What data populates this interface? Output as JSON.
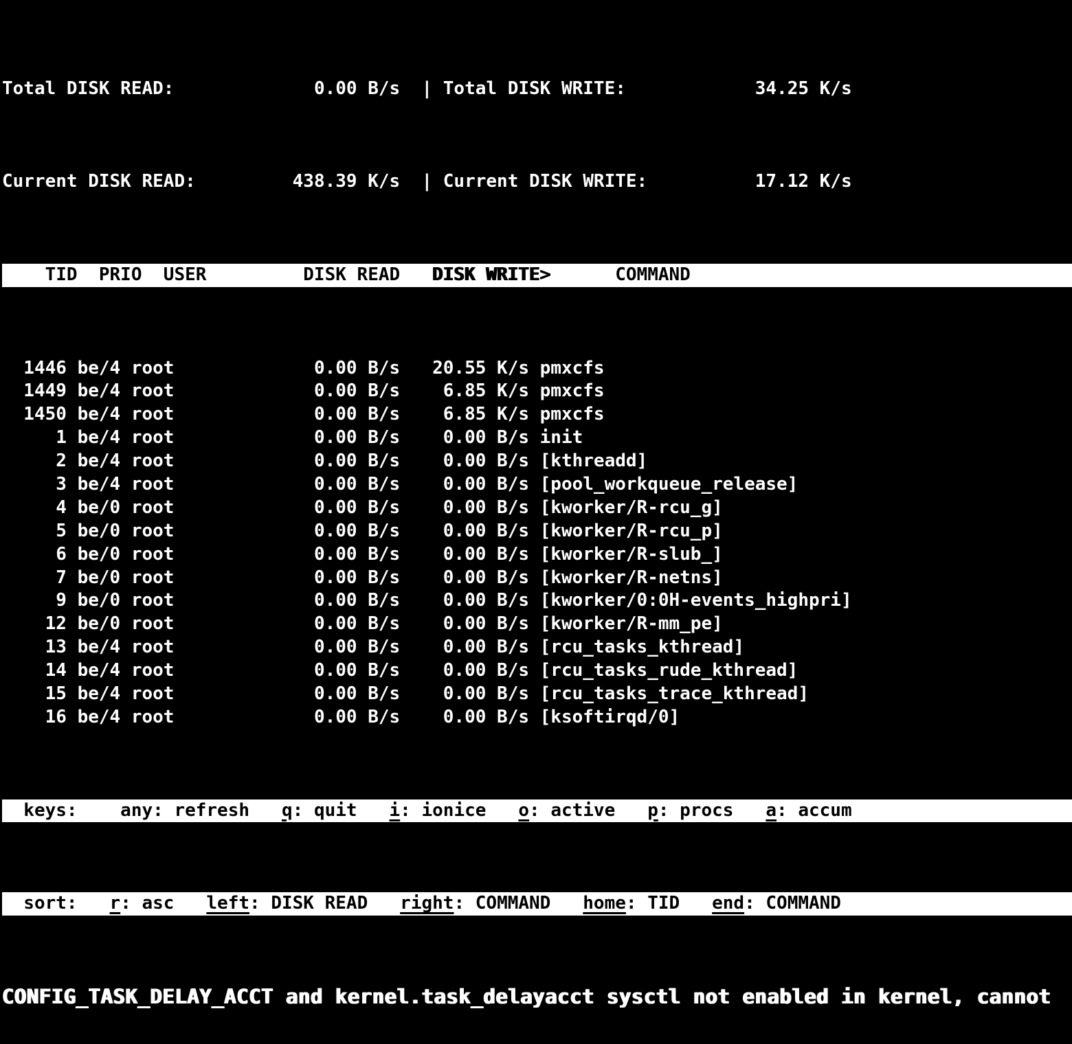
{
  "app": {
    "name": "iotop"
  },
  "colors": {
    "background": "#000000",
    "foreground": "#ffffff",
    "inverse_background": "#ffffff",
    "inverse_foreground": "#000000"
  },
  "summary": {
    "total_read_label": "Total DISK READ:",
    "total_read_value": "0.00 B/s",
    "separator": "|",
    "total_write_label": "Total DISK WRITE:",
    "total_write_value": "34.25 K/s",
    "current_read_label": "Current DISK READ:",
    "current_read_value": "438.39 K/s",
    "current_write_label": "Current DISK WRITE:",
    "current_write_value": "17.12 K/s"
  },
  "table": {
    "headers": {
      "tid": "TID",
      "prio": "PRIO",
      "user": "USER",
      "disk_read": "DISK READ",
      "disk_write": "DISK WRITE",
      "command": "COMMAND"
    },
    "sort_column": "DISK WRITE",
    "sort_indicator": ">",
    "rows": [
      {
        "tid": "1446",
        "prio": "be/4",
        "user": "root",
        "disk_read": "0.00 B/s",
        "disk_write": "20.55 K/s",
        "command": "pmxcfs"
      },
      {
        "tid": "1449",
        "prio": "be/4",
        "user": "root",
        "disk_read": "0.00 B/s",
        "disk_write": "6.85 K/s",
        "command": "pmxcfs"
      },
      {
        "tid": "1450",
        "prio": "be/4",
        "user": "root",
        "disk_read": "0.00 B/s",
        "disk_write": "6.85 K/s",
        "command": "pmxcfs"
      },
      {
        "tid": "1",
        "prio": "be/4",
        "user": "root",
        "disk_read": "0.00 B/s",
        "disk_write": "0.00 B/s",
        "command": "init"
      },
      {
        "tid": "2",
        "prio": "be/4",
        "user": "root",
        "disk_read": "0.00 B/s",
        "disk_write": "0.00 B/s",
        "command": "[kthreadd]"
      },
      {
        "tid": "3",
        "prio": "be/4",
        "user": "root",
        "disk_read": "0.00 B/s",
        "disk_write": "0.00 B/s",
        "command": "[pool_workqueue_release]"
      },
      {
        "tid": "4",
        "prio": "be/0",
        "user": "root",
        "disk_read": "0.00 B/s",
        "disk_write": "0.00 B/s",
        "command": "[kworker/R-rcu_g]"
      },
      {
        "tid": "5",
        "prio": "be/0",
        "user": "root",
        "disk_read": "0.00 B/s",
        "disk_write": "0.00 B/s",
        "command": "[kworker/R-rcu_p]"
      },
      {
        "tid": "6",
        "prio": "be/0",
        "user": "root",
        "disk_read": "0.00 B/s",
        "disk_write": "0.00 B/s",
        "command": "[kworker/R-slub_]"
      },
      {
        "tid": "7",
        "prio": "be/0",
        "user": "root",
        "disk_read": "0.00 B/s",
        "disk_write": "0.00 B/s",
        "command": "[kworker/R-netns]"
      },
      {
        "tid": "9",
        "prio": "be/0",
        "user": "root",
        "disk_read": "0.00 B/s",
        "disk_write": "0.00 B/s",
        "command": "[kworker/0:0H-events_highpri]"
      },
      {
        "tid": "12",
        "prio": "be/0",
        "user": "root",
        "disk_read": "0.00 B/s",
        "disk_write": "0.00 B/s",
        "command": "[kworker/R-mm_pe]"
      },
      {
        "tid": "13",
        "prio": "be/4",
        "user": "root",
        "disk_read": "0.00 B/s",
        "disk_write": "0.00 B/s",
        "command": "[rcu_tasks_kthread]"
      },
      {
        "tid": "14",
        "prio": "be/4",
        "user": "root",
        "disk_read": "0.00 B/s",
        "disk_write": "0.00 B/s",
        "command": "[rcu_tasks_rude_kthread]"
      },
      {
        "tid": "15",
        "prio": "be/4",
        "user": "root",
        "disk_read": "0.00 B/s",
        "disk_write": "0.00 B/s",
        "command": "[rcu_tasks_trace_kthread]"
      },
      {
        "tid": "16",
        "prio": "be/4",
        "user": "root",
        "disk_read": "0.00 B/s",
        "disk_write": "0.00 B/s",
        "command": "[ksoftirqd/0]"
      }
    ]
  },
  "help": {
    "keys_label": "keys:",
    "keys_items": [
      {
        "key": "any",
        "action": "refresh"
      },
      {
        "key": "q",
        "action": "quit"
      },
      {
        "key": "i",
        "action": "ionice"
      },
      {
        "key": "o",
        "action": "active"
      },
      {
        "key": "p",
        "action": "procs"
      },
      {
        "key": "a",
        "action": "accum"
      }
    ],
    "sort_label": "sort:",
    "sort_items": [
      {
        "key": "r",
        "action": "asc"
      },
      {
        "key": "left",
        "action": "DISK READ"
      },
      {
        "key": "right",
        "action": "COMMAND"
      },
      {
        "key": "home",
        "action": "TID"
      },
      {
        "key": "end",
        "action": "COMMAND"
      }
    ],
    "underlined_keys": [
      "q",
      "i",
      "o",
      "p",
      "a",
      "r",
      "left",
      "right",
      "home",
      "end"
    ]
  },
  "status_bar": {
    "message": "CONFIG_TASK_DELAY_ACCT and kernel.task_delayacct sysctl not enabled in kernel, cannot"
  }
}
